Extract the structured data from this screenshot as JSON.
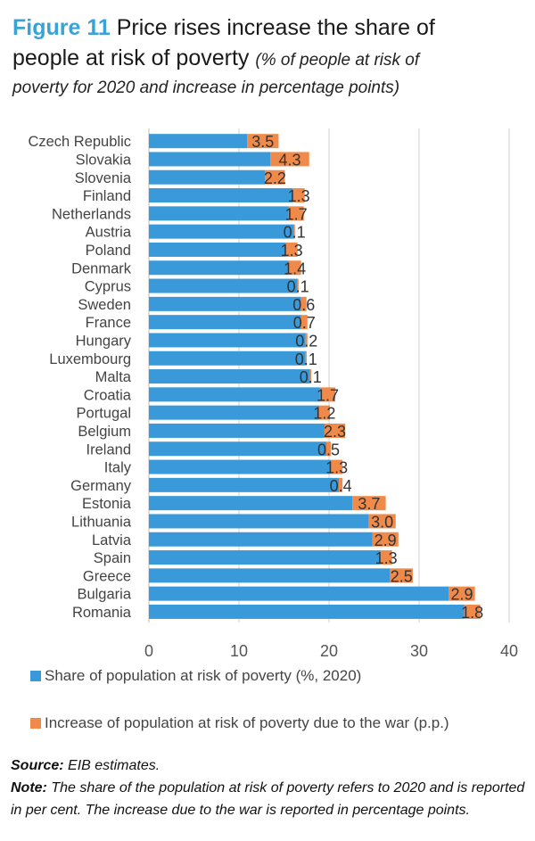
{
  "figure": {
    "label": "Figure 11",
    "title_part1": "Price rises increase the share of",
    "title_part2": "people at risk of poverty",
    "subtitle_part1": "(% of people at risk of",
    "subtitle_part2": "poverty for 2020 and increase in percentage points)"
  },
  "chart_data": {
    "type": "bar",
    "orientation": "horizontal",
    "stacked": true,
    "categories": [
      "Czech Republic",
      "Slovakia",
      "Slovenia",
      "Finland",
      "Netherlands",
      "Austria",
      "Poland",
      "Denmark",
      "Cyprus",
      "Sweden",
      "France",
      "Hungary",
      "Luxembourg",
      "Malta",
      "Croatia",
      "Portugal",
      "Belgium",
      "Ireland",
      "Italy",
      "Germany",
      "Estonia",
      "Lithuania",
      "Latvia",
      "Spain",
      "Greece",
      "Bulgaria",
      "Romania"
    ],
    "series": [
      {
        "name": "Share of population at risk of poverty (%, 2020)",
        "color": "#3a9ad9",
        "values": [
          10.9,
          13.5,
          12.9,
          16.0,
          15.5,
          16.1,
          15.2,
          15.5,
          16.5,
          16.9,
          16.9,
          17.4,
          17.4,
          17.9,
          19.0,
          18.9,
          19.5,
          19.7,
          20.2,
          21.1,
          22.6,
          24.4,
          24.8,
          25.7,
          26.8,
          33.3,
          35.0
        ]
      },
      {
        "name": "Increase of population at risk of poverty due to the war (p.p.)",
        "color": "#f08a4b",
        "values": [
          3.5,
          4.3,
          2.2,
          1.3,
          1.7,
          0.1,
          1.3,
          1.4,
          0.1,
          0.6,
          0.7,
          0.2,
          0.1,
          0.1,
          1.7,
          1.2,
          2.3,
          0.5,
          1.3,
          0.4,
          3.7,
          3.0,
          2.9,
          1.3,
          2.5,
          2.9,
          1.8
        ]
      }
    ],
    "data_labels": [
      "3.5",
      "4.3",
      "2.2",
      "1.3",
      "1.7",
      "0.1",
      "1.3",
      "1.4",
      "0.1",
      "0.6",
      "0.7",
      "0.2",
      "0.1",
      "0.1",
      "1.7",
      "1.2",
      "2.3",
      "0.5",
      "1.3",
      "0.4",
      "3.7",
      "3.0",
      "2.9",
      "1.3",
      "2.5",
      "2.9",
      "1.8"
    ],
    "xlim": [
      0,
      40
    ],
    "x_ticks": [
      0,
      10,
      20,
      30,
      40
    ],
    "grid": true,
    "legend_position": "bottom"
  },
  "legend": {
    "item1": "Share of population at risk of poverty (%, 2020)",
    "item2": "Increase of population at risk of poverty due to the war (p.p.)"
  },
  "notes": {
    "source_label": "Source:",
    "source_text": "EIB estimates.",
    "note_label": "Note:",
    "note_text": "The share of the population at risk of poverty refers to 2020 and is reported in per cent. The increase due to the war is reported in percentage points."
  },
  "colors": {
    "primary": "#3a9ad9",
    "secondary": "#f08a4b",
    "accent_title": "#3aa3d6"
  }
}
